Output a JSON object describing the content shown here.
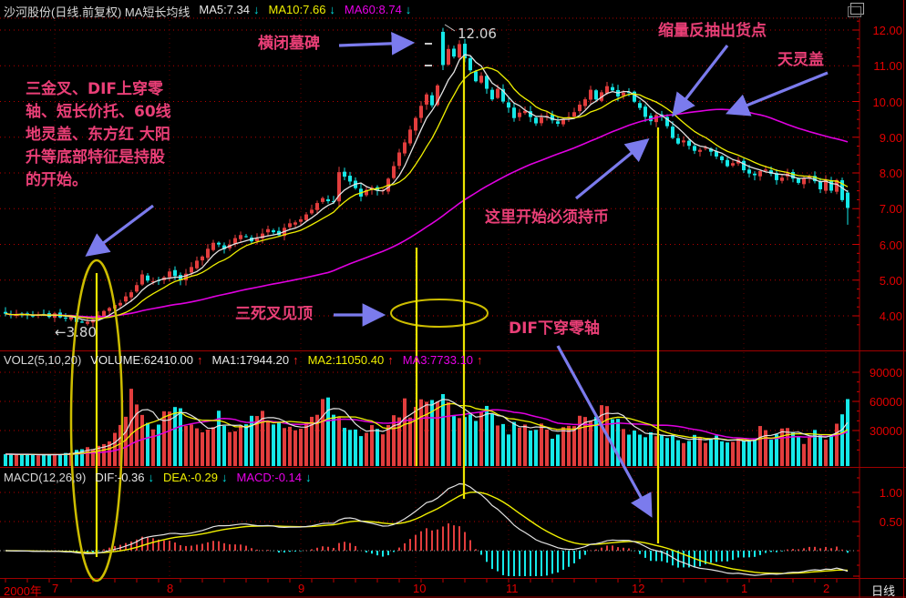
{
  "window": {
    "title": "沙河股份(日线.前复权) MA短长均线",
    "year_label": "2000年",
    "period_label": "日线",
    "corner_icon": "window-restore-icon"
  },
  "legends": {
    "main": {
      "ma5": "MA5:7.34",
      "ma5_arrow": "↓",
      "ma10": "MA10:7.66",
      "ma10_arrow": "↓",
      "ma60": "MA60:8.74",
      "ma60_arrow": "↓"
    },
    "volume": {
      "name": "VOL2(5,10,20)",
      "volume": "VOLUME:62410.00",
      "volume_arrow": "↑",
      "ma1": "MA1:17944.20",
      "ma1_arrow": "↑",
      "ma2": "MA2:11050.40",
      "ma2_arrow": "↑",
      "ma3": "MA3:7733.10",
      "ma3_arrow": "↑"
    },
    "macd": {
      "name": "MACD(12,26,9)",
      "dif": "DIF:-0.36",
      "dif_arrow": "↓",
      "dea": "DEA:-0.29",
      "dea_arrow": "↓",
      "macd": "MACD:-0.14",
      "macd_arrow": "↓"
    }
  },
  "annotations": {
    "tombstone": "横闭墓碑",
    "peak_price": "12.06",
    "shrink_volume_exit": "缩量反抽出货点",
    "sky_cover": "天灵盖",
    "left_block": "三金叉、DIF上穿零\n轴、短长价托、60线\n地灵盖、东方红 大阳\n升等底部特征是持股\n的开始。",
    "hold_cash": "这里开始必须持币",
    "three_death_cross": "三死叉见顶",
    "dif_cross_down": "DIF下穿零轴",
    "low_price": "←3.80"
  },
  "axis": {
    "price_ticks": [
      {
        "v": 12,
        "label": "12.00"
      },
      {
        "v": 11,
        "label": "11.00"
      },
      {
        "v": 10,
        "label": "10.00"
      },
      {
        "v": 9,
        "label": "9.00"
      },
      {
        "v": 8,
        "label": "8.00"
      },
      {
        "v": 7,
        "label": "7.00"
      },
      {
        "v": 6,
        "label": "6.00"
      },
      {
        "v": 5,
        "label": "5.00"
      },
      {
        "v": 4,
        "label": "4.00"
      }
    ],
    "volume_ticks": [
      {
        "v": 90000,
        "label": "90000"
      },
      {
        "v": 60000,
        "label": "60000"
      },
      {
        "v": 30000,
        "label": "30000"
      }
    ],
    "macd_ticks": [
      {
        "v": 1.0,
        "label": "1.00"
      },
      {
        "v": 0.5,
        "label": "0.50"
      }
    ],
    "months": [
      {
        "label": "7",
        "i": 9
      },
      {
        "label": "8",
        "i": 30
      },
      {
        "label": "9",
        "i": 54
      },
      {
        "label": "10",
        "i": 75
      },
      {
        "label": "11",
        "i": 92
      },
      {
        "label": "12",
        "i": 115
      },
      {
        "label": "1",
        "i": 135
      },
      {
        "label": "2",
        "i": 150
      }
    ]
  },
  "colors": {
    "up_candle": "#e23d3d",
    "down_candle": "#15e8e8",
    "ma5": "#e2e2e2",
    "ma10": "#f0f000",
    "ma60": "#e000e0",
    "grid": "#a00000",
    "axis_text": "#e20000",
    "annotation": "#ea3f77",
    "arrow": "#7b7bed",
    "marker_yellow": "#cdbd00",
    "marker_yellow_bright": "#ece400"
  },
  "chart_data": [
    {
      "type": "candlestick",
      "name": "price",
      "title": "沙河股份 daily candles with MA5/MA10/MA60",
      "ylim": [
        3.5,
        12.3
      ],
      "n": 155,
      "close_anchors": [
        [
          0,
          4.05
        ],
        [
          5,
          3.98
        ],
        [
          9,
          4.02
        ],
        [
          12,
          3.92
        ],
        [
          14,
          3.82
        ],
        [
          17,
          4.0
        ],
        [
          20,
          4.28
        ],
        [
          23,
          4.66
        ],
        [
          25,
          5.12
        ],
        [
          27,
          4.94
        ],
        [
          30,
          5.22
        ],
        [
          32,
          4.96
        ],
        [
          35,
          5.52
        ],
        [
          38,
          6.08
        ],
        [
          40,
          5.88
        ],
        [
          43,
          6.28
        ],
        [
          45,
          6.08
        ],
        [
          48,
          6.42
        ],
        [
          50,
          6.28
        ],
        [
          52,
          6.58
        ],
        [
          54,
          6.68
        ],
        [
          56,
          6.98
        ],
        [
          58,
          7.32
        ],
        [
          60,
          7.18
        ],
        [
          61,
          8.02
        ],
        [
          63,
          7.78
        ],
        [
          65,
          7.38
        ],
        [
          67,
          7.62
        ],
        [
          69,
          7.48
        ],
        [
          71,
          8.18
        ],
        [
          73,
          8.88
        ],
        [
          75,
          9.55
        ],
        [
          77,
          10.18
        ],
        [
          78,
          9.92
        ],
        [
          79,
          10.48
        ],
        [
          80,
          11.02
        ],
        [
          81,
          11.52
        ],
        [
          82,
          11.28
        ],
        [
          83,
          11.58
        ],
        [
          84,
          11.18
        ],
        [
          85,
          10.88
        ],
        [
          86,
          10.58
        ],
        [
          87,
          10.72
        ],
        [
          88,
          10.38
        ],
        [
          89,
          10.08
        ],
        [
          90,
          10.32
        ],
        [
          91,
          10.02
        ],
        [
          92,
          9.82
        ],
        [
          93,
          9.58
        ],
        [
          95,
          9.72
        ],
        [
          97,
          9.42
        ],
        [
          99,
          9.62
        ],
        [
          101,
          9.38
        ],
        [
          103,
          9.58
        ],
        [
          105,
          9.92
        ],
        [
          107,
          10.28
        ],
        [
          108,
          10.08
        ],
        [
          110,
          10.42
        ],
        [
          112,
          10.12
        ],
        [
          114,
          10.28
        ],
        [
          115,
          10.02
        ],
        [
          116,
          9.82
        ],
        [
          117,
          9.58
        ],
        [
          118,
          9.42
        ],
        [
          119,
          9.62
        ],
        [
          120,
          9.52
        ],
        [
          121,
          9.28
        ],
        [
          122,
          8.98
        ],
        [
          123,
          8.78
        ],
        [
          124,
          8.92
        ],
        [
          126,
          8.58
        ],
        [
          128,
          8.72
        ],
        [
          130,
          8.42
        ],
        [
          132,
          8.22
        ],
        [
          134,
          8.38
        ],
        [
          135,
          8.12
        ],
        [
          137,
          7.92
        ],
        [
          139,
          8.12
        ],
        [
          141,
          7.82
        ],
        [
          143,
          7.98
        ],
        [
          145,
          7.68
        ],
        [
          147,
          7.92
        ],
        [
          149,
          7.58
        ],
        [
          150,
          7.78
        ],
        [
          151,
          7.52
        ],
        [
          152,
          7.82
        ],
        [
          153,
          7.22
        ],
        [
          154,
          7.02
        ]
      ],
      "overrides": {
        "14": {
          "l": 3.8
        },
        "80": {
          "o": 11.95,
          "h": 12.06,
          "l": 10.88,
          "c": 11.02
        },
        "154": {
          "o": 7.45,
          "h": 7.52,
          "l": 6.55,
          "c": 7.02
        }
      },
      "ma_periods": [
        5,
        10,
        60
      ],
      "last_values": {
        "ma5": 7.34,
        "ma10": 7.66,
        "ma60": 8.74
      },
      "peak": {
        "index": 80,
        "high": 12.06
      },
      "low": {
        "index": 14,
        "value": 3.8
      }
    },
    {
      "type": "bar",
      "name": "volume",
      "ylim": [
        0,
        95000
      ],
      "anchors": [
        [
          0,
          6000
        ],
        [
          8,
          4500
        ],
        [
          12,
          7500
        ],
        [
          16,
          13000
        ],
        [
          19,
          22000
        ],
        [
          22,
          40000
        ],
        [
          23,
          73000
        ],
        [
          25,
          46000
        ],
        [
          27,
          30000
        ],
        [
          29,
          56000
        ],
        [
          31,
          62000
        ],
        [
          33,
          35000
        ],
        [
          36,
          28000
        ],
        [
          39,
          46000
        ],
        [
          41,
          30000
        ],
        [
          44,
          38000
        ],
        [
          47,
          52000
        ],
        [
          50,
          40000
        ],
        [
          53,
          30000
        ],
        [
          55,
          36000
        ],
        [
          57,
          48000
        ],
        [
          59,
          64000
        ],
        [
          61,
          42000
        ],
        [
          63,
          30000
        ],
        [
          65,
          24000
        ],
        [
          67,
          34000
        ],
        [
          69,
          27000
        ],
        [
          71,
          44000
        ],
        [
          73,
          56000
        ],
        [
          75,
          48000
        ],
        [
          77,
          62000
        ],
        [
          79,
          52000
        ],
        [
          80,
          68000
        ],
        [
          82,
          56000
        ],
        [
          84,
          45000
        ],
        [
          86,
          38000
        ],
        [
          88,
          48000
        ],
        [
          90,
          34000
        ],
        [
          92,
          29000
        ],
        [
          94,
          38000
        ],
        [
          96,
          27000
        ],
        [
          98,
          33000
        ],
        [
          100,
          24000
        ],
        [
          102,
          30000
        ],
        [
          104,
          36000
        ],
        [
          106,
          42000
        ],
        [
          108,
          50000
        ],
        [
          110,
          56000
        ],
        [
          112,
          38000
        ],
        [
          114,
          30000
        ],
        [
          116,
          24000
        ],
        [
          118,
          30000
        ],
        [
          120,
          22000
        ],
        [
          122,
          27000
        ],
        [
          124,
          20000
        ],
        [
          126,
          24000
        ],
        [
          128,
          18000
        ],
        [
          130,
          22000
        ],
        [
          132,
          16000
        ],
        [
          134,
          26000
        ],
        [
          136,
          20000
        ],
        [
          138,
          30000
        ],
        [
          140,
          23000
        ],
        [
          142,
          34000
        ],
        [
          144,
          25000
        ],
        [
          146,
          19000
        ],
        [
          148,
          28000
        ],
        [
          150,
          23000
        ],
        [
          152,
          32000
        ],
        [
          153,
          42000
        ],
        [
          154,
          62410
        ]
      ],
      "ma_periods": [
        5,
        10,
        20
      ],
      "last_value": 62410
    },
    {
      "type": "line",
      "name": "macd",
      "params": [
        12,
        26,
        9
      ],
      "derived_from": "price closes (EMA12-EMA26, DEA=EMA9, hist=2*(DIF-DEA))",
      "last": {
        "dif": -0.36,
        "dea": -0.29,
        "macd": -0.14
      }
    }
  ]
}
